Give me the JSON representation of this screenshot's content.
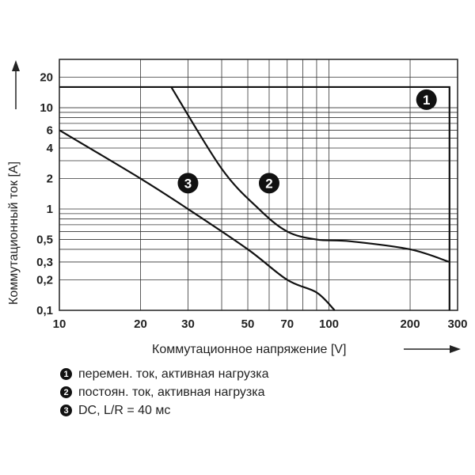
{
  "chart_data": {
    "type": "line",
    "xlabel": "Коммутационное напряжение [V]",
    "ylabel": "Коммутационный ток [A]",
    "x_scale": "log",
    "y_scale": "log",
    "xlim": [
      10,
      300
    ],
    "ylim": [
      0.1,
      30
    ],
    "x_ticks": [
      10,
      20,
      30,
      50,
      70,
      100,
      200,
      300
    ],
    "y_ticks": [
      0.1,
      0.2,
      0.3,
      0.5,
      1,
      2,
      4,
      6,
      10,
      20
    ],
    "grid": true,
    "series": [
      {
        "id": "1",
        "x": [
          10,
          280,
          280
        ],
        "y": [
          16,
          16,
          0.1
        ]
      },
      {
        "id": "2",
        "x": [
          26,
          40,
          55,
          70,
          90,
          120,
          200,
          280
        ],
        "y": [
          16,
          2.5,
          1.0,
          0.6,
          0.5,
          0.48,
          0.4,
          0.3
        ]
      },
      {
        "id": "3",
        "x": [
          10,
          20,
          30,
          50,
          70,
          90,
          105
        ],
        "y": [
          6,
          2,
          1.0,
          0.4,
          0.2,
          0.15,
          0.1
        ]
      }
    ],
    "markers": [
      {
        "id": "1",
        "label": "1",
        "x": 230,
        "y": 12
      },
      {
        "id": "2",
        "label": "2",
        "x": 60,
        "y": 1.8
      },
      {
        "id": "3",
        "label": "3",
        "x": 30,
        "y": 1.8
      }
    ],
    "legend": [
      {
        "num": "1",
        "text": "перемен. ток, активная нагрузка"
      },
      {
        "num": "2",
        "text": "постоян. ток, активная нагрузка"
      },
      {
        "num": "3",
        "text": "DC, L/R = 40 мс"
      }
    ]
  }
}
